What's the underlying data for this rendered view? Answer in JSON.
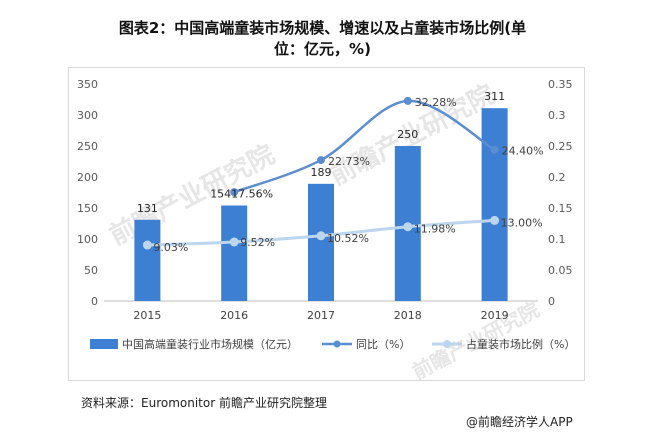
{
  "header": {
    "title_line1": "图表2：中国高端童装市场规模、增速以及占童装市场比例(单",
    "title_line2": "位：亿元，%)"
  },
  "footer": {
    "source": "资料来源：Euromonitor 前瞻产业研究院整理",
    "brand": "@前瞻经济学人APP"
  },
  "watermark": {
    "text": "前瞻产业研究院"
  },
  "colors": {
    "bar": "#3d7fd3",
    "growth_line": "#5b8ed0",
    "share_line": "#bcd6ee",
    "axis_text": "#595959",
    "grid": "#e6e6e6"
  },
  "chart_data": {
    "type": "bar",
    "categories": [
      "2015",
      "2016",
      "2017",
      "2018",
      "2019"
    ],
    "y_left_ticks": [
      "0",
      "50",
      "100",
      "150",
      "200",
      "250",
      "300",
      "350"
    ],
    "y_right_ticks": [
      "0",
      "0.05",
      "0.1",
      "0.15",
      "0.2",
      "0.25",
      "0.3",
      "0.35"
    ],
    "ylim_left": [
      0,
      350
    ],
    "ylim_right": [
      0,
      0.35
    ],
    "grid": false,
    "legend_position": "bottom",
    "series": [
      {
        "name": "中国高端童装行业市场规模（亿元）",
        "type": "bar",
        "axis": "left",
        "values": [
          131,
          154,
          189,
          250,
          311
        ],
        "labels": [
          "131",
          "154",
          "189",
          "250",
          "311"
        ]
      },
      {
        "name": "同比（%）",
        "type": "line",
        "axis": "right",
        "values": [
          null,
          0.1756,
          0.2273,
          0.3228,
          0.244
        ],
        "labels": [
          "",
          "17.56%",
          "22.73%",
          "32.28%",
          "24.40%"
        ]
      },
      {
        "name": "占童装市场比例（%）",
        "type": "line",
        "axis": "right",
        "values": [
          0.0903,
          0.0952,
          0.1052,
          0.1198,
          0.13
        ],
        "labels": [
          "9.03%",
          "9.52%",
          "10.52%",
          "11.98%",
          "13.00%"
        ]
      }
    ]
  }
}
